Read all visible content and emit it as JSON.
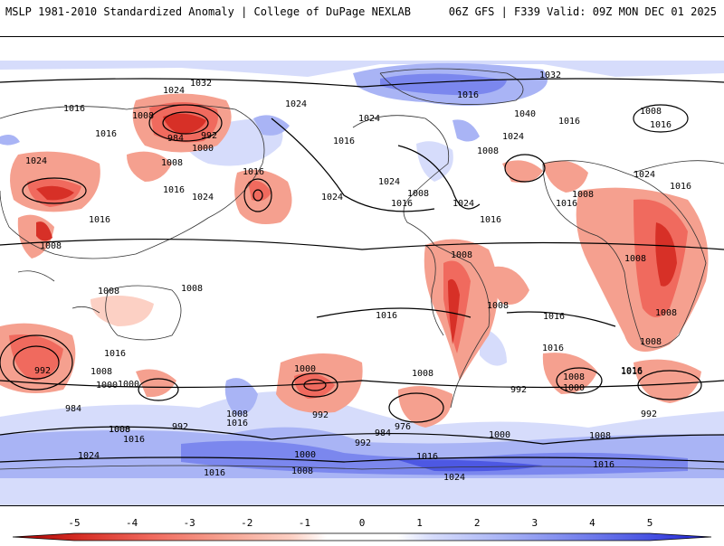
{
  "title": {
    "left": "MSLP 1981-2010 Standardized Anomaly | College of DuPage NEXLAB",
    "right": "06Z GFS | F339 Valid: 09Z MON DEC 01 2025"
  },
  "colorbar": {
    "ticks": [
      "-5",
      "-4",
      "-3",
      "-2",
      "-1",
      "0",
      "1",
      "2",
      "3",
      "4",
      "5"
    ],
    "colors": [
      "#a50000",
      "#d73027",
      "#f06a5e",
      "#f5a08f",
      "#fcd0c4",
      "#ffffff",
      "#d6dcfb",
      "#a9b4f5",
      "#7b87ee",
      "#4d58e3",
      "#1f23d6"
    ]
  },
  "isobar_labels": [
    "1024",
    "1032",
    "1008",
    "1016",
    "984",
    "992",
    "1000",
    "1008",
    "1016",
    "1024",
    "1016",
    "1024",
    "1016",
    "1024",
    "1024",
    "1032",
    "1016",
    "1040",
    "1024",
    "1016",
    "1008",
    "1016",
    "1024",
    "1016",
    "1008",
    "1024",
    "1016",
    "1008",
    "1024",
    "1008",
    "1016",
    "1024",
    "1016",
    "1016",
    "1008",
    "1016",
    "1008",
    "1008",
    "1008",
    "1008",
    "1016",
    "1016",
    "1016",
    "1016",
    "1008",
    "1008",
    "1008",
    "1016",
    "1000",
    "1008",
    "992",
    "984",
    "992",
    "1000",
    "1008",
    "1016",
    "1000",
    "992",
    "976",
    "984",
    "992",
    "1008",
    "1016",
    "1000",
    "1008",
    "1000",
    "1016",
    "992",
    "1008",
    "1016",
    "1008",
    "1024",
    "1016",
    "1000",
    "992",
    "1000",
    "1016",
    "1008",
    "1024"
  ]
}
